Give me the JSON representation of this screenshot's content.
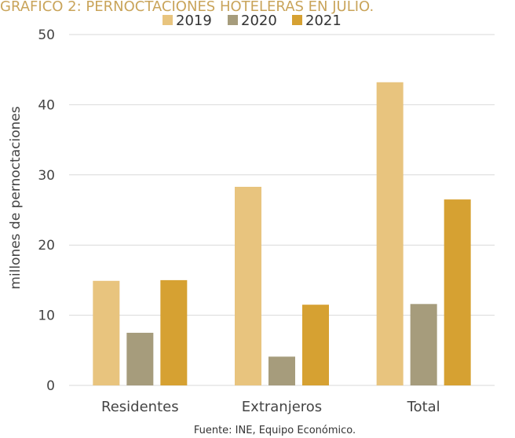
{
  "header": {
    "title": "GRÁFICO 2: PERNOCTACIONES HOTELERAS EN JULIO."
  },
  "footer": {
    "source": "Fuente: INE, Equipo Económico."
  },
  "colors": {
    "2019": "#e8c47e",
    "2020": "#a69c7c",
    "2021": "#d6a132",
    "title": "#c9a45a",
    "grid": "#d9d9d9"
  },
  "chart_data": {
    "type": "bar",
    "title": "GRÁFICO 2: PERNOCTACIONES HOTELERAS EN JULIO.",
    "xlabel": "",
    "ylabel": "millones de pernoctaciones",
    "ylim": [
      0,
      50
    ],
    "yticks": [
      0,
      10,
      20,
      30,
      40,
      50
    ],
    "grid": true,
    "legend_position": "top",
    "categories": [
      "Residentes",
      "Extranjeros",
      "Total"
    ],
    "series": [
      {
        "name": "2019",
        "values": [
          14.9,
          28.3,
          43.2
        ]
      },
      {
        "name": "2020",
        "values": [
          7.5,
          4.1,
          11.6
        ]
      },
      {
        "name": "2021",
        "values": [
          15.0,
          11.5,
          26.5
        ]
      }
    ]
  }
}
